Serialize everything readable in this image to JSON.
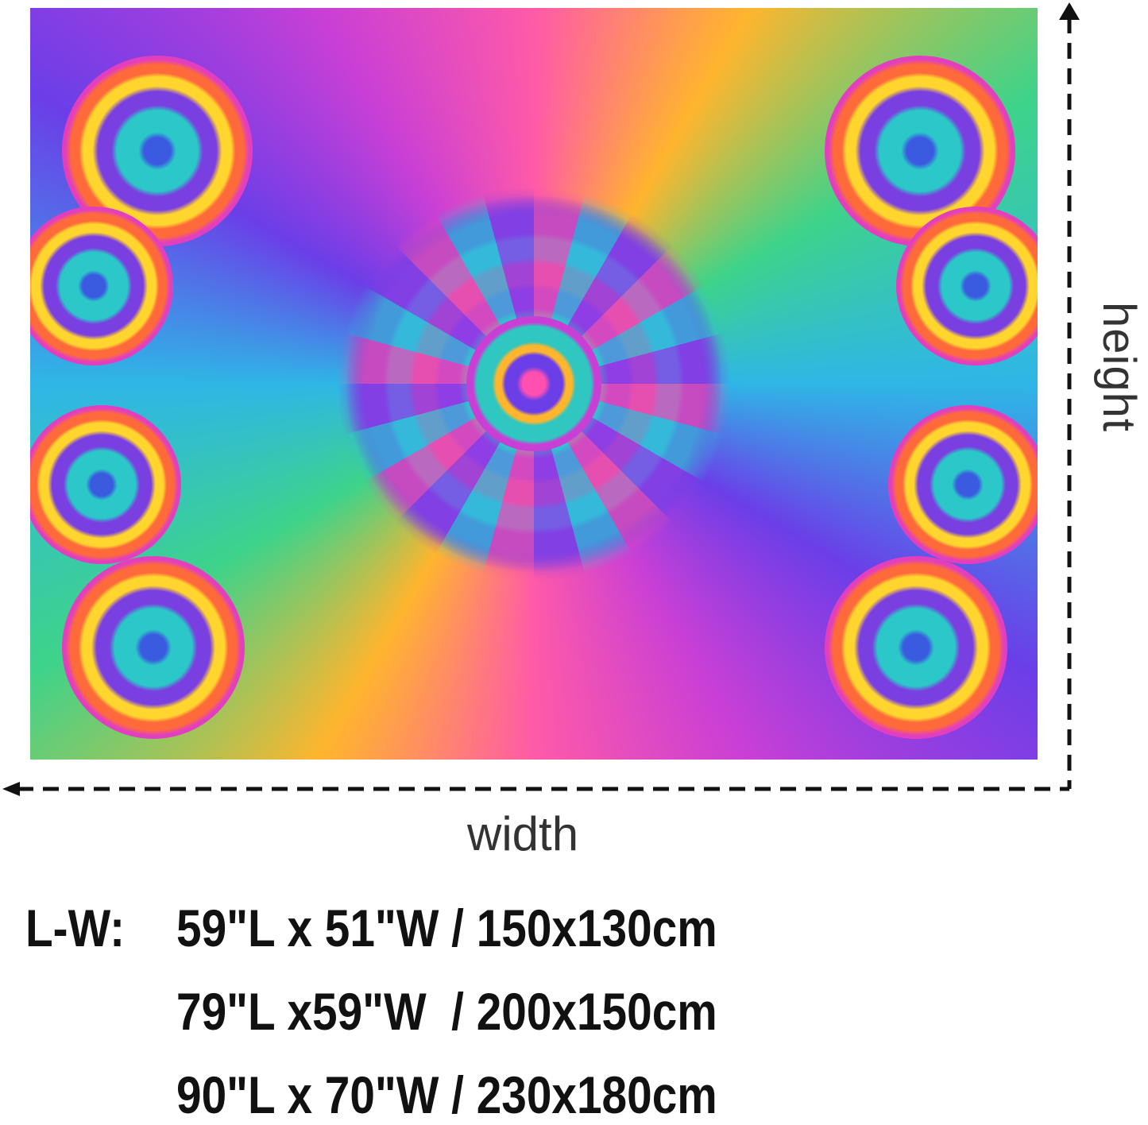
{
  "product_image": {
    "description_label": "",
    "colors": {
      "pink": "#ff5aa8",
      "orange": "#ffb52e",
      "green": "#3ed38a",
      "cyan": "#2fb6e6",
      "violet": "#6b3ee8"
    }
  },
  "dimension_labels": {
    "height": "height",
    "width": "width"
  },
  "sizes": {
    "prefix": "L-W:",
    "lines": [
      "59\"L x 51\"W / 150x130cm",
      "79\"L x59\"W  / 200x150cm",
      "90\"L x 70\"W / 230x180cm"
    ]
  }
}
